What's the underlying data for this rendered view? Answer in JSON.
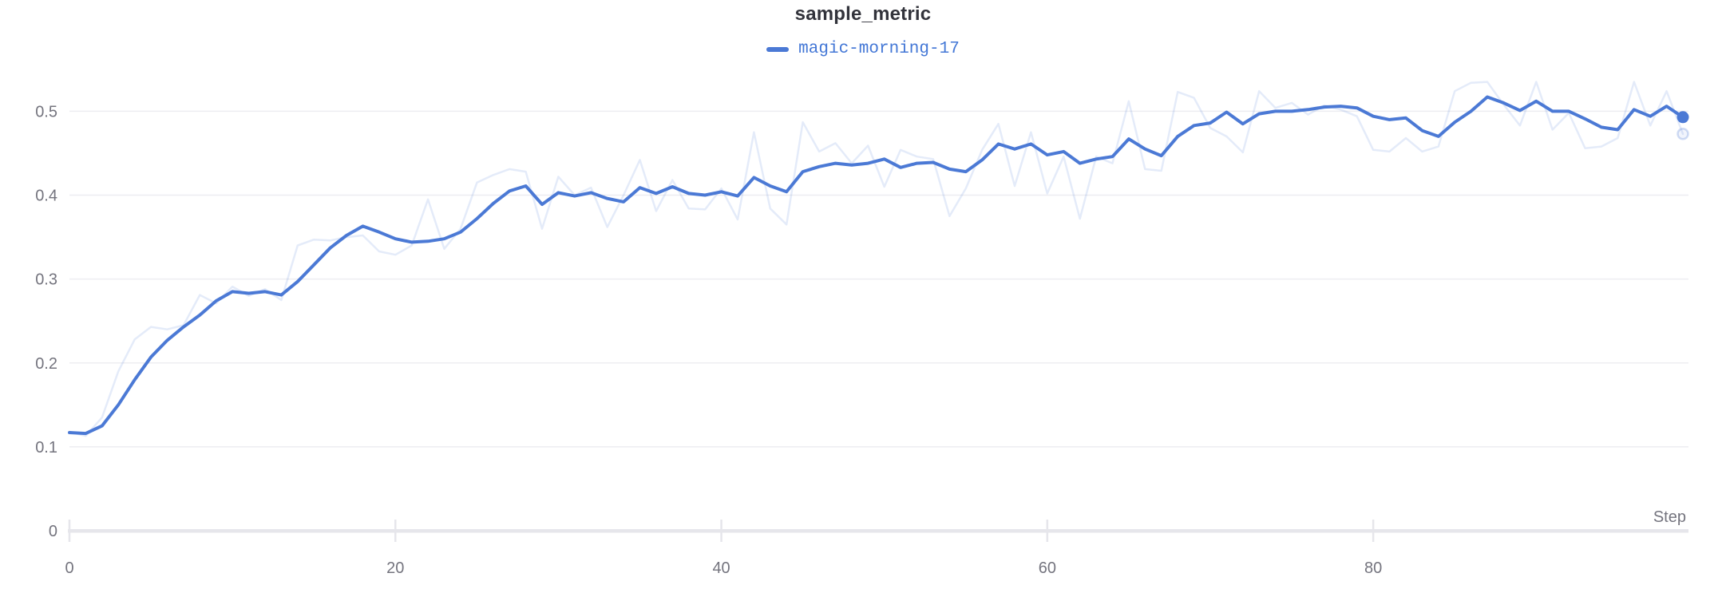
{
  "header": {
    "title": "sample_metric"
  },
  "legend": {
    "series_label": "magic-morning-17"
  },
  "axes": {
    "x_label": "Step",
    "x_tick_values": [
      0,
      20,
      40,
      60,
      80
    ],
    "y_tick_values": [
      0,
      0.1,
      0.2,
      0.3,
      0.4,
      0.5
    ]
  },
  "colors": {
    "accent": "#4b79d5",
    "legend_text": "#4377d6",
    "raw_line_opacity": 0.15,
    "gridline": "#ededf1",
    "axis_line": "#e6e6eb",
    "tick_text": "#74747e",
    "title_text": "#32333b",
    "background": "#ffffff"
  },
  "chart_data": {
    "type": "line",
    "title": "sample_metric",
    "xlabel": "Step",
    "ylabel": "",
    "xlim": [
      0,
      99
    ],
    "ylim": [
      0,
      0.547
    ],
    "grid": "horizontal",
    "legend_position": "top-center",
    "x_description": "training step index, one point per step from 0 to 99",
    "series": [
      {
        "name": "magic-morning-17 (raw)",
        "style": "faint",
        "end_marker": "hollow-dot",
        "values": [
          0.118,
          0.113,
          0.135,
          0.19,
          0.228,
          0.243,
          0.24,
          0.245,
          0.281,
          0.271,
          0.291,
          0.28,
          0.288,
          0.275,
          0.34,
          0.347,
          0.346,
          0.35,
          0.352,
          0.333,
          0.329,
          0.34,
          0.395,
          0.336,
          0.36,
          0.415,
          0.424,
          0.431,
          0.428,
          0.36,
          0.422,
          0.4,
          0.409,
          0.362,
          0.4,
          0.442,
          0.381,
          0.418,
          0.384,
          0.383,
          0.408,
          0.371,
          0.475,
          0.384,
          0.365,
          0.487,
          0.452,
          0.462,
          0.438,
          0.459,
          0.41,
          0.454,
          0.446,
          0.443,
          0.375,
          0.408,
          0.454,
          0.485,
          0.411,
          0.475,
          0.402,
          0.446,
          0.372,
          0.446,
          0.438,
          0.512,
          0.431,
          0.429,
          0.523,
          0.516,
          0.48,
          0.47,
          0.451,
          0.524,
          0.504,
          0.51,
          0.496,
          0.507,
          0.502,
          0.494,
          0.454,
          0.452,
          0.468,
          0.452,
          0.458,
          0.524,
          0.534,
          0.535,
          0.508,
          0.483,
          0.535,
          0.478,
          0.498,
          0.456,
          0.458,
          0.468,
          0.535,
          0.483,
          0.524,
          0.473
        ]
      },
      {
        "name": "magic-morning-17 (smoothed)",
        "style": "solid",
        "end_marker": "solid-dot",
        "values": [
          0.117,
          0.116,
          0.125,
          0.15,
          0.18,
          0.207,
          0.227,
          0.243,
          0.257,
          0.274,
          0.285,
          0.283,
          0.285,
          0.281,
          0.297,
          0.317,
          0.337,
          0.352,
          0.363,
          0.356,
          0.348,
          0.344,
          0.345,
          0.348,
          0.356,
          0.372,
          0.39,
          0.405,
          0.411,
          0.389,
          0.403,
          0.399,
          0.403,
          0.396,
          0.392,
          0.409,
          0.402,
          0.41,
          0.402,
          0.4,
          0.404,
          0.399,
          0.421,
          0.411,
          0.404,
          0.428,
          0.434,
          0.438,
          0.436,
          0.438,
          0.443,
          0.433,
          0.438,
          0.439,
          0.431,
          0.428,
          0.442,
          0.461,
          0.455,
          0.461,
          0.448,
          0.452,
          0.438,
          0.443,
          0.446,
          0.467,
          0.455,
          0.447,
          0.47,
          0.483,
          0.486,
          0.499,
          0.485,
          0.497,
          0.5,
          0.5,
          0.502,
          0.505,
          0.506,
          0.504,
          0.494,
          0.49,
          0.492,
          0.477,
          0.47,
          0.487,
          0.5,
          0.517,
          0.51,
          0.501,
          0.512,
          0.5,
          0.5,
          0.491,
          0.481,
          0.478,
          0.502,
          0.494,
          0.506,
          0.493
        ]
      }
    ]
  }
}
